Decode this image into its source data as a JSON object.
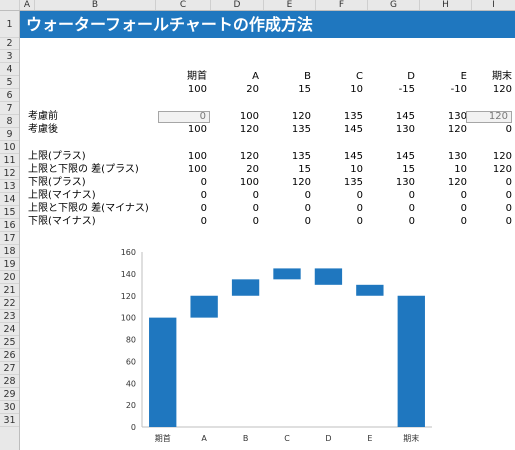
{
  "col_headers": [
    "A",
    "B",
    "C",
    "D",
    "E",
    "F",
    "G",
    "H",
    "I"
  ],
  "row_headers": [
    "1",
    "2",
    "3",
    "4",
    "5",
    "6",
    "7",
    "8",
    "9",
    "10",
    "11",
    "12",
    "13",
    "14",
    "15",
    "16",
    "17",
    "18",
    "19",
    "20",
    "21",
    "22",
    "23",
    "24",
    "25",
    "26",
    "27",
    "28",
    "29",
    "30",
    "31"
  ],
  "title": "ウォーターフォールチャートの作成方法",
  "header_row": [
    "期首",
    "A",
    "B",
    "C",
    "D",
    "E",
    "期末"
  ],
  "value_row": [
    "100",
    "20",
    "15",
    "10",
    "-15",
    "-10",
    "120"
  ],
  "rows": [
    {
      "label": "考慮前",
      "values": [
        "0",
        "100",
        "120",
        "135",
        "145",
        "130",
        "120"
      ]
    },
    {
      "label": "考慮後",
      "values": [
        "100",
        "120",
        "135",
        "145",
        "130",
        "120",
        "0"
      ]
    },
    {
      "label": "上限(プラス)",
      "values": [
        "100",
        "120",
        "135",
        "145",
        "145",
        "130",
        "120"
      ]
    },
    {
      "label": "上限と下限の 差(プラス)",
      "values": [
        "100",
        "20",
        "15",
        "10",
        "15",
        "10",
        "120"
      ]
    },
    {
      "label": "下限(プラス)",
      "values": [
        "0",
        "100",
        "120",
        "135",
        "130",
        "120",
        "0"
      ]
    },
    {
      "label": "上限(マイナス)",
      "values": [
        "0",
        "0",
        "0",
        "0",
        "0",
        "0",
        "0"
      ]
    },
    {
      "label": "上限と下限の 差(マイナス)",
      "values": [
        "0",
        "0",
        "0",
        "0",
        "0",
        "0",
        "0"
      ]
    },
    {
      "label": "下限(マイナス)",
      "values": [
        "0",
        "0",
        "0",
        "0",
        "0",
        "0",
        "0"
      ]
    }
  ],
  "chart_data": {
    "type": "bar",
    "categories": [
      "期首",
      "A",
      "B",
      "C",
      "D",
      "E",
      "期末"
    ],
    "base": [
      0,
      100,
      120,
      135,
      130,
      120,
      0
    ],
    "values": [
      100,
      20,
      15,
      10,
      15,
      10,
      120
    ],
    "ylim": [
      0,
      160
    ],
    "yticks": [
      "0",
      "20",
      "40",
      "60",
      "80",
      "100",
      "120",
      "140",
      "160"
    ],
    "color": "#1f77bf",
    "grid": false
  }
}
